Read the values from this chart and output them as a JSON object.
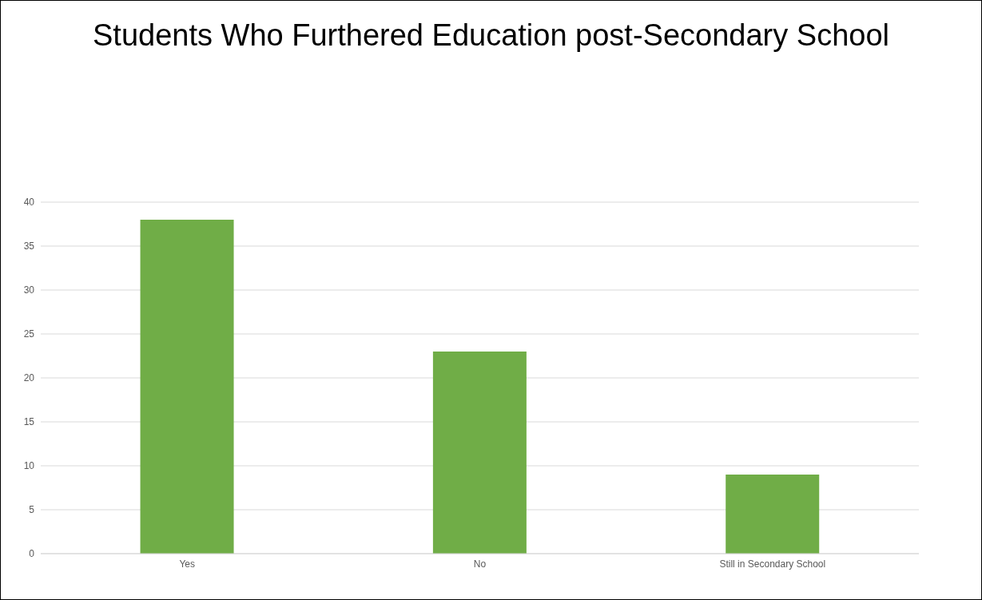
{
  "chart_data": {
    "type": "bar",
    "title": "Students Who Furthered Education post-Secondary School",
    "categories": [
      "Yes",
      "No",
      "Still in Secondary School"
    ],
    "values": [
      38,
      23,
      9
    ],
    "color": "#70ad47",
    "ylim": [
      0,
      40
    ],
    "yticks": [
      0,
      5,
      10,
      15,
      20,
      25,
      30,
      35,
      40
    ],
    "grid": "y"
  }
}
